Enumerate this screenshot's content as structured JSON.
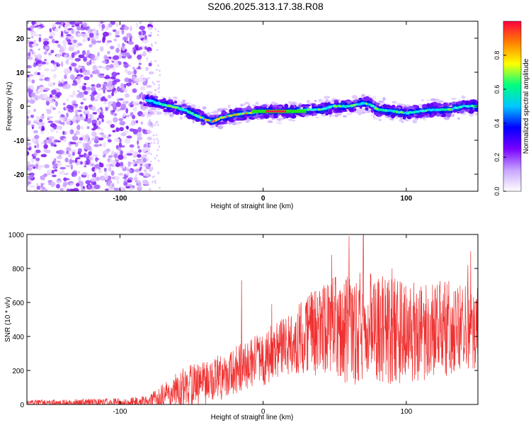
{
  "title": "S206.2025.313.17.38.R08",
  "chart_data": [
    {
      "type": "heatmap",
      "xlabel": "Height of straight line (km)",
      "ylabel": "Frequency (Hz)",
      "xlim": [
        -165,
        150
      ],
      "ylim": [
        -25,
        25
      ],
      "xticks": [
        -100,
        0,
        100
      ],
      "yticks": [
        -20,
        -10,
        0,
        10,
        20
      ],
      "noise_region_x": [
        -165,
        -80
      ],
      "ridge": {
        "x": [
          -82,
          -75,
          -65,
          -55,
          -45,
          -40,
          -35,
          -30,
          -25,
          -20,
          -10,
          0,
          10,
          20,
          30,
          40,
          50,
          60,
          70,
          75,
          80,
          90,
          100,
          110,
          120,
          130,
          140,
          150
        ],
        "freq": [
          2,
          1,
          0,
          -1,
          -3,
          -4,
          -4.5,
          -3.5,
          -3,
          -2.5,
          -2,
          -1.5,
          -1.5,
          -1.5,
          -1,
          -1,
          0,
          0,
          1,
          0.5,
          -1,
          -1.5,
          -2,
          -1.5,
          -1,
          -1,
          0,
          0
        ]
      },
      "colorbar": {
        "label": "Normalized spectral amplitude",
        "ticks": [
          0.0,
          0.2,
          0.4,
          0.6,
          0.8
        ],
        "range": [
          0,
          1
        ],
        "colors": [
          "#ffffff",
          "#c8a4ff",
          "#7800ff",
          "#0000ff",
          "#00c8ff",
          "#00ff80",
          "#ffff00",
          "#ff8000",
          "#ff0040"
        ]
      }
    },
    {
      "type": "line",
      "xlabel": "Height of straight line (km)",
      "ylabel": "SNR (10 * v/v)",
      "xlim": [
        -165,
        150
      ],
      "ylim": [
        0,
        1000
      ],
      "xticks": [
        -100,
        0,
        100
      ],
      "yticks": [
        0,
        200,
        400,
        600,
        800,
        1000
      ],
      "color": "#f03030",
      "series": [
        {
          "name": "",
          "trend_x": [
            -165,
            -100,
            -80,
            -70,
            -60,
            -50,
            -40,
            -30,
            -20,
            -10,
            0,
            10,
            20,
            30,
            40,
            60,
            80,
            100,
            120,
            150
          ],
          "trend_y": [
            10,
            10,
            20,
            50,
            80,
            110,
            130,
            160,
            200,
            230,
            270,
            320,
            360,
            420,
            440,
            450,
            440,
            430,
            440,
            470
          ],
          "noise_amp_x": [
            -165,
            -80,
            -60,
            -20,
            20,
            40,
            70,
            150
          ],
          "noise_amp_y": [
            12,
            25,
            90,
            110,
            140,
            230,
            260,
            200
          ],
          "peaks": [
            [
              70,
              1000
            ],
            [
              60,
              990
            ],
            [
              48,
              880
            ],
            [
              145,
              900
            ],
            [
              -15,
              730
            ],
            [
              6,
              590
            ],
            [
              143,
              820
            ],
            [
              90,
              800
            ]
          ]
        }
      ]
    }
  ]
}
